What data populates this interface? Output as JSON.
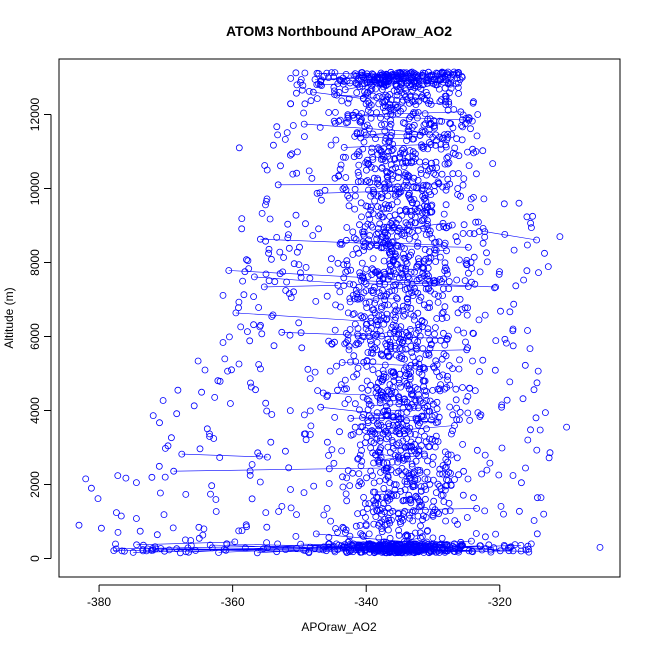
{
  "chart_data": {
    "type": "scatter",
    "title": "ATOM3 Northbound APOraw_AO2",
    "xlabel": "APOraw_AO2",
    "ylabel": "Altitude (m)",
    "xlim": [
      -386,
      -302
    ],
    "ylim": [
      -500,
      13500
    ],
    "xticks": [
      -380,
      -360,
      -340,
      -320
    ],
    "yticks": [
      0,
      2000,
      4000,
      6000,
      8000,
      10000,
      12000
    ],
    "point_style": "open circles connected by lines",
    "grid": false,
    "legend": "none",
    "colors": {
      "series": "#0000ff",
      "axis": "#000000"
    },
    "envelope": [
      {
        "alt": 150,
        "xmin": -378,
        "xmax": -315
      },
      {
        "alt": 1000,
        "xmin": -383,
        "xmax": -313
      },
      {
        "alt": 2000,
        "xmin": -381,
        "xmax": -314
      },
      {
        "alt": 3000,
        "xmin": -376,
        "xmax": -311
      },
      {
        "alt": 4000,
        "xmin": -372,
        "xmax": -313
      },
      {
        "alt": 5000,
        "xmin": -367,
        "xmax": -314
      },
      {
        "alt": 6000,
        "xmin": -363,
        "xmax": -314
      },
      {
        "alt": 7000,
        "xmin": -362,
        "xmax": -316
      },
      {
        "alt": 8000,
        "xmin": -361,
        "xmax": -312
      },
      {
        "alt": 9000,
        "xmin": -360,
        "xmax": -313
      },
      {
        "alt": 10000,
        "xmin": -356,
        "xmax": -318
      },
      {
        "alt": 11000,
        "xmin": -355,
        "xmax": -322
      },
      {
        "alt": 12000,
        "xmin": -353,
        "xmax": -323
      },
      {
        "alt": 13150,
        "xmin": -352,
        "xmax": -326
      }
    ],
    "outliers": [
      {
        "x": -383,
        "y": 900
      },
      {
        "x": -382,
        "y": 2150
      },
      {
        "x": -305,
        "y": 300
      },
      {
        "x": -310,
        "y": 3550
      },
      {
        "x": -311,
        "y": 8700
      },
      {
        "x": -359,
        "y": 11100
      }
    ],
    "approx_point_count": 2600
  }
}
